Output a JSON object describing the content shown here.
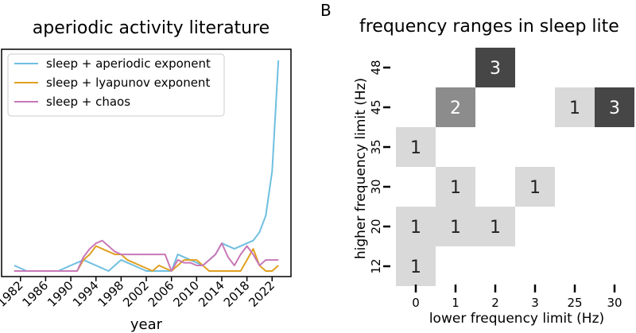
{
  "panel_label_b": "B",
  "chart_data": [
    {
      "type": "line",
      "title": "aperiodic activity literature",
      "xlabel": "year",
      "ylabel": "",
      "xlim": [
        1979,
        2025
      ],
      "ylim": [
        -1,
        40
      ],
      "grid": false,
      "legend_position": "top-left",
      "x_ticks": [
        "1982",
        "1986",
        "1990",
        "1994",
        "1998",
        "2002",
        "2006",
        "2010",
        "2014",
        "2018",
        "2022"
      ],
      "x_tick_values": [
        1982,
        1986,
        1990,
        1994,
        1998,
        2002,
        2006,
        2010,
        2014,
        2018,
        2022
      ],
      "x": [
        1981,
        1982,
        1983,
        1984,
        1985,
        1986,
        1987,
        1988,
        1989,
        1990,
        1991,
        1992,
        1993,
        1994,
        1995,
        1996,
        1997,
        1998,
        1999,
        2000,
        2001,
        2002,
        2003,
        2004,
        2005,
        2006,
        2007,
        2008,
        2009,
        2010,
        2011,
        2012,
        2013,
        2014,
        2015,
        2016,
        2017,
        2018,
        2019,
        2020,
        2021,
        2022,
        2023
      ],
      "series": [
        {
          "name": "sleep + aperiodic exponent",
          "color": "#6fbfe0",
          "values": [
            1,
            0.5,
            0,
            0,
            0,
            0,
            0,
            0,
            0.5,
            1,
            1.5,
            2,
            1.5,
            1,
            0.5,
            0,
            1,
            2,
            1.5,
            1,
            0.5,
            0,
            0,
            0,
            0,
            0,
            3,
            2.5,
            2,
            1.5,
            1,
            2,
            3,
            5,
            4.5,
            4,
            4.5,
            5,
            5.5,
            7,
            10,
            18,
            38
          ]
        },
        {
          "name": "sleep + lyapunov exponent",
          "color": "#e0a020",
          "values": [
            0,
            0,
            0,
            0,
            0,
            0,
            0,
            0,
            0,
            0,
            0,
            2,
            3,
            4.5,
            4,
            3.5,
            3,
            3,
            2,
            1.5,
            1,
            0.5,
            0,
            1,
            0.5,
            0,
            1,
            2,
            2,
            2,
            1,
            0,
            0,
            0,
            0,
            0,
            0,
            2,
            4,
            1,
            0,
            0,
            1
          ]
        },
        {
          "name": "sleep + chaos",
          "color": "#c878b8",
          "values": [
            0,
            0,
            0,
            0,
            0,
            0,
            0,
            0,
            0,
            0,
            0,
            2.5,
            4,
            5,
            5.5,
            4.5,
            3.5,
            3,
            3,
            3,
            3,
            3,
            3,
            3,
            3,
            0,
            2,
            1.5,
            1.5,
            1,
            1,
            2,
            3,
            5,
            2.5,
            1,
            3,
            4.5,
            3,
            1,
            2,
            2,
            2
          ]
        }
      ]
    },
    {
      "type": "heatmap",
      "title": "frequency ranges in sleep lite",
      "xlabel": "lower frequency limit (Hz)",
      "ylabel": "higher frequency limit (Hz)",
      "x_categories": [
        "0",
        "1",
        "2",
        "3",
        "25",
        "30"
      ],
      "y_categories": [
        "48",
        "45",
        "35",
        "30",
        "20",
        "12"
      ],
      "max_value": 3,
      "cells": [
        {
          "x": "2",
          "y": "48",
          "value": 3
        },
        {
          "x": "1",
          "y": "45",
          "value": 2
        },
        {
          "x": "25",
          "y": "45",
          "value": 1
        },
        {
          "x": "30",
          "y": "45",
          "value": 3
        },
        {
          "x": "0",
          "y": "35",
          "value": 1
        },
        {
          "x": "1",
          "y": "30",
          "value": 1
        },
        {
          "x": "3",
          "y": "30",
          "value": 1
        },
        {
          "x": "0",
          "y": "20",
          "value": 1
        },
        {
          "x": "1",
          "y": "20",
          "value": 1
        },
        {
          "x": "2",
          "y": "20",
          "value": 1
        },
        {
          "x": "0",
          "y": "12",
          "value": 1
        }
      ]
    }
  ]
}
